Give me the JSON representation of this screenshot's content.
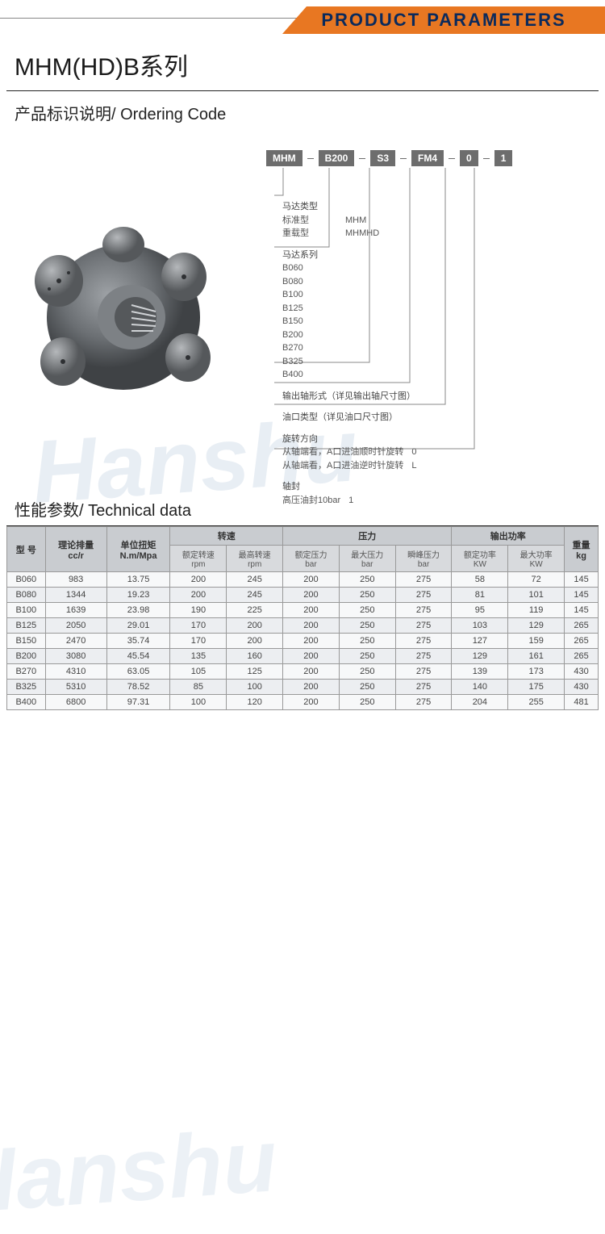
{
  "header": {
    "banner_text": "PRODUCT PARAMETERS",
    "banner_bg": "#e87722",
    "banner_text_color": "#0a2a5c"
  },
  "series_title": "MHM(HD)B系列",
  "ordering": {
    "section_title": "产品标识说明/ Ordering Code",
    "code_boxes": [
      "MHM",
      "B200",
      "S3",
      "FM4",
      "0",
      "1"
    ],
    "box_bg": "#6d6d6d",
    "box_text_color": "#ffffff",
    "groups": [
      {
        "title": "马达类型",
        "rows": [
          {
            "label": "标准型",
            "value": "MHM"
          },
          {
            "label": "重载型",
            "value": "MHMHD"
          }
        ]
      },
      {
        "title": "马达系列",
        "rows": [
          {
            "label": "B060",
            "value": ""
          },
          {
            "label": "B080",
            "value": ""
          },
          {
            "label": "B100",
            "value": ""
          },
          {
            "label": "B125",
            "value": ""
          },
          {
            "label": "B150",
            "value": ""
          },
          {
            "label": "B200",
            "value": ""
          },
          {
            "label": "B270",
            "value": ""
          },
          {
            "label": "B325",
            "value": ""
          },
          {
            "label": "B400",
            "value": ""
          }
        ]
      },
      {
        "title": "输出轴形式（详见输出轴尺寸图）",
        "rows": []
      },
      {
        "title": "油口类型（详见油口尺寸图）",
        "rows": []
      },
      {
        "title": "旋转方向",
        "rows": [
          {
            "label": "从轴端看，A口进油顺时针旋转",
            "value": "0"
          },
          {
            "label": "从轴端看，A口进油逆时针旋转",
            "value": "L"
          }
        ]
      },
      {
        "title": "轴封",
        "rows": [
          {
            "label": "高压油封10bar",
            "value": "1"
          }
        ]
      }
    ]
  },
  "watermark_text": "Hanshu",
  "table": {
    "section_title": "性能参数/ Technical data",
    "header_bg": "#c9ccd0",
    "subheader_bg": "#d8dadd",
    "row_alt_bg": "#eceef1",
    "row_bg": "#f7f8f9",
    "border_color": "#999999",
    "top_groups": [
      {
        "label": "型 号",
        "span": 1,
        "sub": [
          ""
        ]
      },
      {
        "label": "理论排量",
        "unit": "cc/r",
        "span": 1,
        "sub": [
          ""
        ]
      },
      {
        "label": "单位扭矩",
        "unit": "N.m/Mpa",
        "span": 1,
        "sub": [
          ""
        ]
      },
      {
        "label": "转速",
        "span": 2,
        "sub": [
          "额定转速 rpm",
          "最高转速 rpm"
        ]
      },
      {
        "label": "压力",
        "span": 3,
        "sub": [
          "额定压力 bar",
          "最大压力 bar",
          "瞬峰压力 bar"
        ]
      },
      {
        "label": "输出功率",
        "span": 2,
        "sub": [
          "额定功率 KW",
          "最大功率 KW"
        ]
      },
      {
        "label": "重量",
        "unit": "kg",
        "span": 1,
        "sub": [
          ""
        ]
      }
    ],
    "columns": [
      "型号",
      "理论排量 cc/r",
      "单位扭矩 N.m/Mpa",
      "额定转速 rpm",
      "最高转速 rpm",
      "额定压力 bar",
      "最大压力 bar",
      "瞬峰压力 bar",
      "额定功率 KW",
      "最大功率 KW",
      "重量 kg"
    ],
    "rows": [
      [
        "B060",
        "983",
        "13.75",
        "200",
        "245",
        "200",
        "250",
        "275",
        "58",
        "72",
        "145"
      ],
      [
        "B080",
        "1344",
        "19.23",
        "200",
        "245",
        "200",
        "250",
        "275",
        "81",
        "101",
        "145"
      ],
      [
        "B100",
        "1639",
        "23.98",
        "190",
        "225",
        "200",
        "250",
        "275",
        "95",
        "119",
        "145"
      ],
      [
        "B125",
        "2050",
        "29.01",
        "170",
        "200",
        "200",
        "250",
        "275",
        "103",
        "129",
        "265"
      ],
      [
        "B150",
        "2470",
        "35.74",
        "170",
        "200",
        "200",
        "250",
        "275",
        "127",
        "159",
        "265"
      ],
      [
        "B200",
        "3080",
        "45.54",
        "135",
        "160",
        "200",
        "250",
        "275",
        "129",
        "161",
        "265"
      ],
      [
        "B270",
        "4310",
        "63.05",
        "105",
        "125",
        "200",
        "250",
        "275",
        "139",
        "173",
        "430"
      ],
      [
        "B325",
        "5310",
        "78.52",
        "85",
        "100",
        "200",
        "250",
        "275",
        "140",
        "175",
        "430"
      ],
      [
        "B400",
        "6800",
        "97.31",
        "100",
        "120",
        "200",
        "250",
        "275",
        "204",
        "255",
        "481"
      ]
    ]
  }
}
